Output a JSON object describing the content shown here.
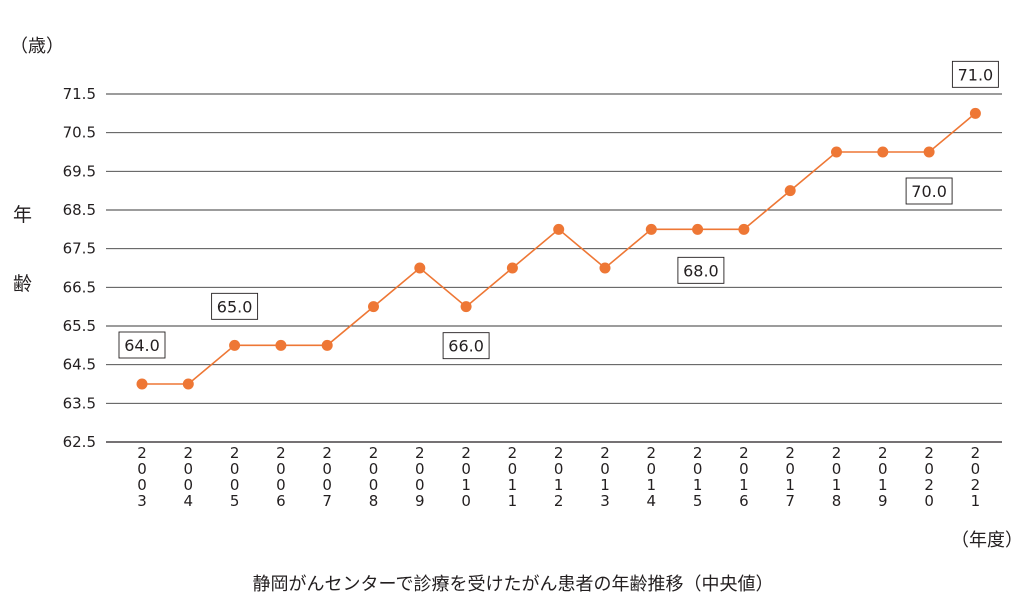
{
  "chart_data": {
    "type": "line",
    "title": "静岡がんセンターで診療を受けたがん患者の年齢推移（中央値）",
    "ylabel": [
      "年",
      "齢"
    ],
    "y_unit": "（歳）",
    "x_unit": "（年度）",
    "ylim": [
      62.5,
      71.5
    ],
    "y_ticks": [
      "71.5",
      "70.5",
      "69.5",
      "68.5",
      "67.5",
      "66.5",
      "65.5",
      "64.5",
      "63.5",
      "62.5"
    ],
    "grid": true,
    "categories": [
      "2003",
      "2004",
      "2005",
      "2006",
      "2007",
      "2008",
      "2009",
      "2010",
      "2011",
      "2012",
      "2013",
      "2014",
      "2015",
      "2016",
      "2017",
      "2018",
      "2019",
      "2020",
      "2021"
    ],
    "values": [
      64,
      64,
      65,
      65,
      65,
      66,
      67,
      66,
      67,
      68,
      67,
      68,
      68,
      68,
      69,
      70,
      70,
      70,
      71
    ],
    "series_color": "#ee7735",
    "data_labels": [
      {
        "index": 0,
        "text": "64.0",
        "position": "above"
      },
      {
        "index": 2,
        "text": "65.0",
        "position": "above"
      },
      {
        "index": 7,
        "text": "66.0",
        "position": "below"
      },
      {
        "index": 13,
        "text": "68.0",
        "position": "below-left"
      },
      {
        "index": 17,
        "text": "70.0",
        "position": "below"
      },
      {
        "index": 18,
        "text": "71.0",
        "position": "above"
      }
    ]
  }
}
